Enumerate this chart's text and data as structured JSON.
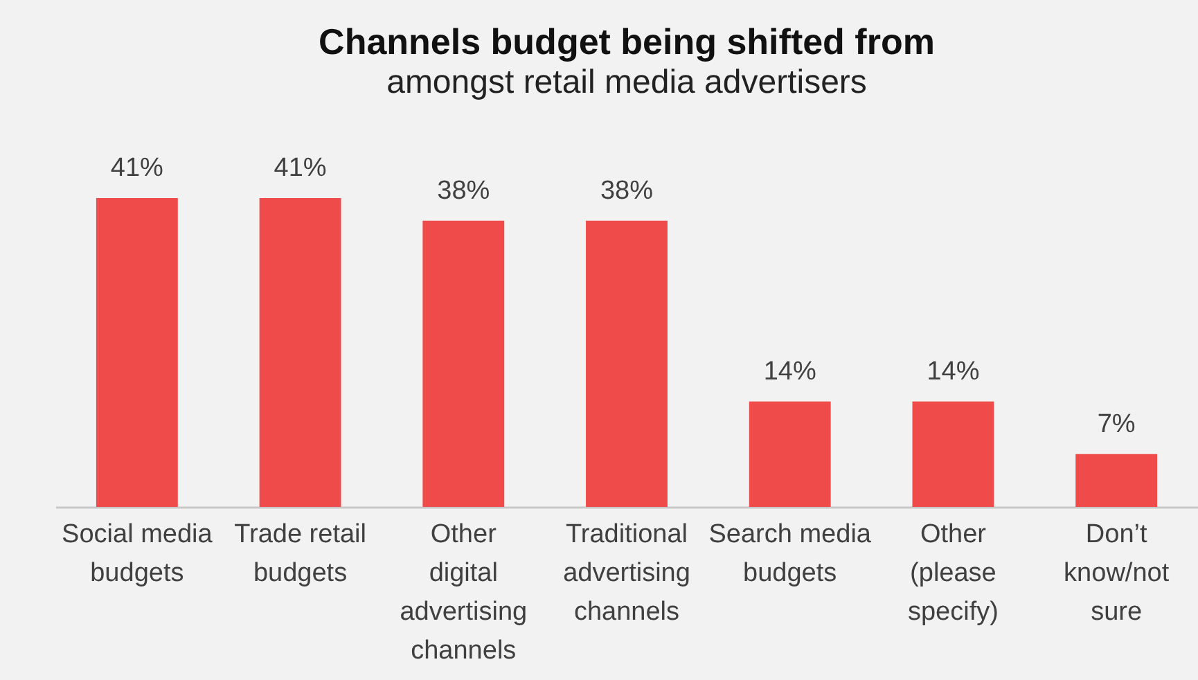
{
  "chart_data": {
    "type": "bar",
    "title": "Channels budget being shifted from",
    "subtitle": "amongst retail media advertisers",
    "categories": [
      "Social media budgets",
      "Trade retail budgets",
      "Other digital advertising channels",
      "Traditional advertising channels",
      "Search media budgets",
      "Other (please specify)",
      "Don’t know/not sure"
    ],
    "values": [
      41,
      41,
      38,
      38,
      14,
      14,
      7
    ],
    "value_labels": [
      "41%",
      "41%",
      "38%",
      "38%",
      "14%",
      "14%",
      "7%"
    ],
    "color": "#f04b4b"
  }
}
